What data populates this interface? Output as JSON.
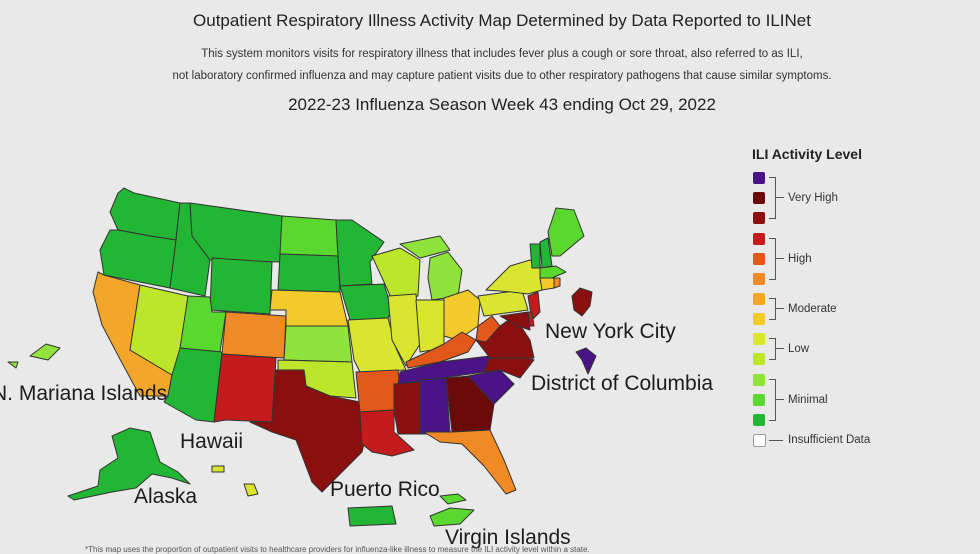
{
  "header": {
    "title": "Outpatient Respiratory Illness Activity Map Determined by Data Reported to ILINet",
    "subtitle_line1": "This system monitors visits for respiratory illness that includes fever plus a cough or sore throat, also referred to as ILI,",
    "subtitle_line2": "not laboratory confirmed influenza and may capture patient visits due to other respiratory pathogens that cause similar symptoms.",
    "week": "2022-23 Influenza Season Week 43 ending Oct 29, 2022"
  },
  "colors": {
    "very_high_1": "#4a1486",
    "very_high_2": "#6b0a0a",
    "very_high_3": "#8a1010",
    "high_1": "#c41c1c",
    "high_2": "#e2581b",
    "high_3": "#ef8a24",
    "moderate_1": "#f2a72b",
    "moderate_2": "#f2cb2b",
    "low_1": "#d9e52f",
    "low_2": "#bde62a",
    "minimal_1": "#8fe33a",
    "minimal_2": "#5ad82f",
    "minimal_3": "#23b534",
    "insufficient": "#ffffff",
    "border": "#333333"
  },
  "map_labels": {
    "nyc": "New York City",
    "dc": "District of Columbia",
    "mariana": "N. Mariana Islands",
    "hawaii": "Hawaii",
    "alaska": "Alaska",
    "puerto_rico": "Puerto Rico",
    "virgin_islands": "Virgin Islands"
  },
  "legend": {
    "title": "ILI Activity Level",
    "groups": [
      {
        "label": "Very High"
      },
      {
        "label": "High"
      },
      {
        "label": "Moderate"
      },
      {
        "label": "Low"
      },
      {
        "label": "Minimal"
      }
    ],
    "insufficient_label": "Insufficient Data"
  },
  "footnote": "*This map uses the proportion of outpatient visits to healthcare providers for influenza-like illness to measure the ILI activity level within a state."
}
